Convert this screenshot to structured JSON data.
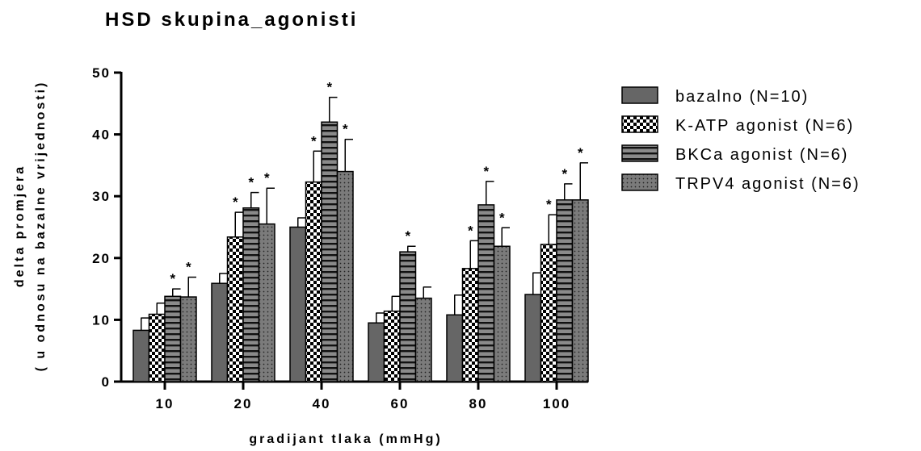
{
  "chart_data": {
    "type": "bar",
    "title": "HSD skupina_agonisti",
    "xlabel": "gradijant tlaka (mmHg)",
    "ylabel_line1": "delta promjera",
    "ylabel_line2": "( u odnosu na bazalne vrijednosti)",
    "categories": [
      "10",
      "20",
      "40",
      "60",
      "80",
      "100"
    ],
    "ylim": [
      0,
      50
    ],
    "yticks": [
      0,
      10,
      20,
      30,
      40,
      50
    ],
    "legend_position": "right",
    "significance_marker": "*",
    "series": [
      {
        "name": "bazalno (N=10)",
        "pattern": "solid",
        "color": "#666666",
        "values": [
          8.3,
          15.9,
          25.0,
          9.5,
          10.8,
          14.1
        ],
        "errors": [
          2.0,
          1.6,
          1.5,
          1.6,
          3.2,
          3.5
        ],
        "significant": [
          false,
          false,
          false,
          false,
          false,
          false
        ]
      },
      {
        "name": "K-ATP agonist (N=6)",
        "pattern": "checker",
        "color": "#000000",
        "values": [
          10.9,
          23.4,
          32.3,
          11.4,
          18.3,
          22.2
        ],
        "errors": [
          1.8,
          4.0,
          5.0,
          2.4,
          4.5,
          4.8
        ],
        "significant": [
          false,
          true,
          true,
          false,
          true,
          true
        ]
      },
      {
        "name": "BKCa agonist (N=6)",
        "pattern": "hlines",
        "color": "#666666",
        "values": [
          13.8,
          28.1,
          42.0,
          21.0,
          28.6,
          29.4
        ],
        "errors": [
          1.2,
          2.5,
          4.0,
          0.9,
          3.8,
          2.6
        ],
        "significant": [
          true,
          true,
          true,
          true,
          true,
          true
        ]
      },
      {
        "name": "TRPV4 agonist (N=6)",
        "pattern": "dots",
        "color": "#666666",
        "values": [
          13.7,
          25.5,
          34.0,
          13.5,
          21.9,
          29.4
        ],
        "errors": [
          3.2,
          5.8,
          5.2,
          1.8,
          3.0,
          6.0
        ],
        "significant": [
          true,
          true,
          true,
          false,
          true,
          true
        ]
      }
    ]
  }
}
